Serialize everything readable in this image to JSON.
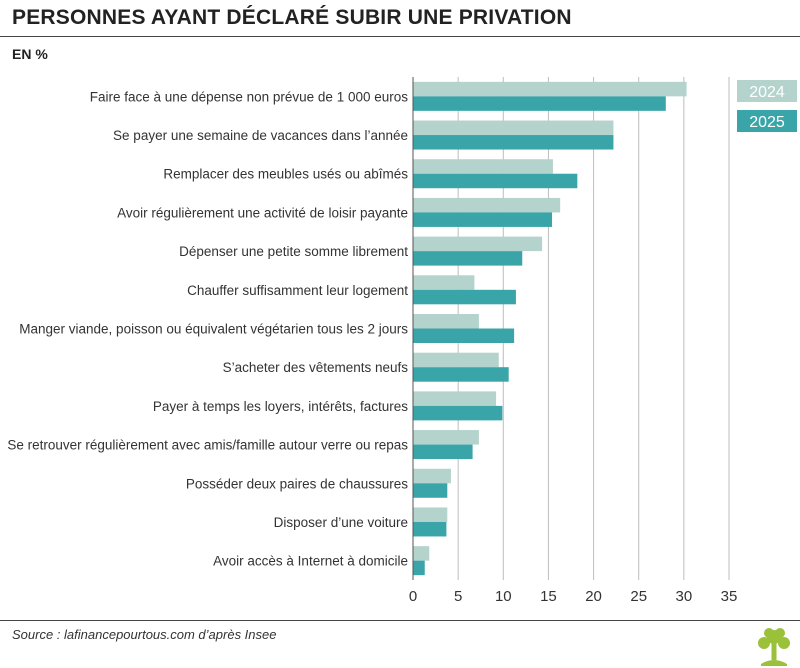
{
  "header": {
    "title": "PERSONNES AYANT DÉCLARÉ SUBIR UNE PRIVATION",
    "unit": "EN %"
  },
  "footer": {
    "source": "Source : lafinancepourtous.com d’après Insee"
  },
  "colors": {
    "series_2024": "#b3d3cc",
    "series_2025": "#3aa5a9",
    "grid": "#bdbdbd",
    "logo": "#9bc13a"
  },
  "icons": {
    "logo": "tree-logo-icon"
  },
  "chart_data": {
    "type": "bar",
    "orientation": "horizontal",
    "categories": [
      "Faire face à une dépense non prévue de 1 000 euros",
      "Se payer une semaine de vacances dans l’année",
      "Remplacer des meubles usés ou abîmés",
      "Avoir régulièrement une activité de loisir payante",
      "Dépenser une petite somme librement",
      "Chauffer suffisamment leur logement",
      "Manger viande, poisson ou équivalent végétarien tous les 2 jours",
      "S’acheter des vêtements neufs",
      "Payer à temps les loyers, intérêts, factures",
      "Se retrouver régulièrement avec amis/famille autour verre ou repas",
      "Posséder deux paires de chaussures",
      "Disposer d’une voiture",
      "Avoir accès à Internet à domicile"
    ],
    "series": [
      {
        "name": "2024",
        "values": [
          30.3,
          22.2,
          15.5,
          16.3,
          14.3,
          6.8,
          7.3,
          9.5,
          9.2,
          7.3,
          4.2,
          3.8,
          1.8
        ]
      },
      {
        "name": "2025",
        "values": [
          28.0,
          22.2,
          18.2,
          15.4,
          12.1,
          11.4,
          11.2,
          10.6,
          9.9,
          6.6,
          3.8,
          3.7,
          1.3
        ]
      }
    ],
    "xlim": [
      0,
      35
    ],
    "xticks": [
      0,
      5,
      10,
      15,
      20,
      25,
      30,
      35
    ],
    "xlabel": "",
    "ylabel": "",
    "grid": "vertical",
    "legend_position": "top-right"
  }
}
